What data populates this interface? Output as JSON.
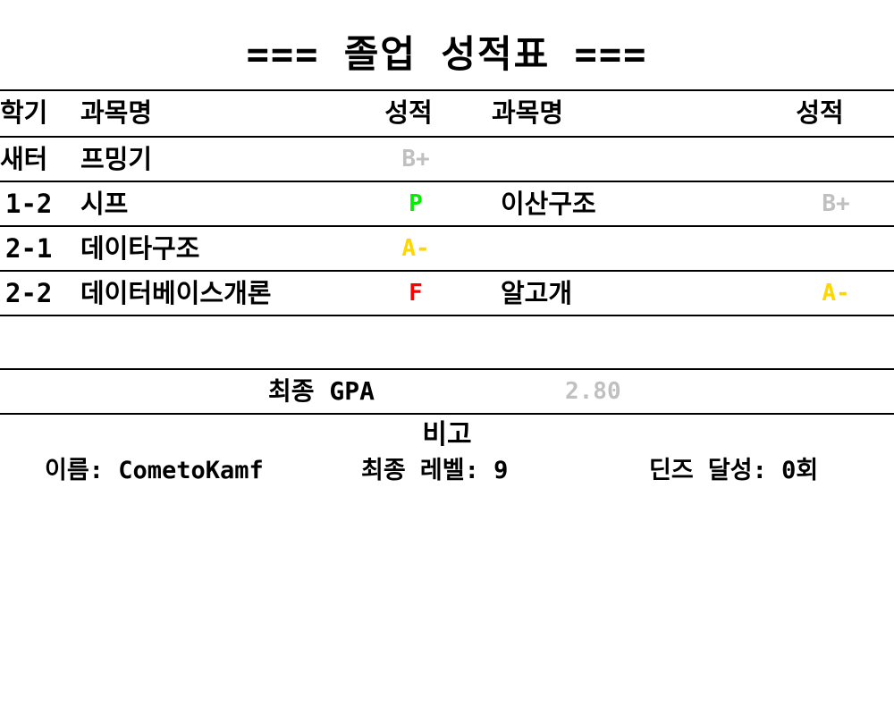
{
  "title": "=== 졸업 성적표 ===",
  "table": {
    "headers": {
      "semester": "학기",
      "course1": "과목명",
      "grade1": "성적",
      "course2": "과목명",
      "grade2": "성적"
    },
    "rows": [
      {
        "semester": "새터",
        "course1": "프밍기",
        "grade1": "B+",
        "course2": "",
        "grade2": ""
      },
      {
        "semester": "1-2",
        "course1": "시프",
        "grade1": "P",
        "course2": "이산구조",
        "grade2": "B+"
      },
      {
        "semester": "2-1",
        "course1": "데이타구조",
        "grade1": "A-",
        "course2": "",
        "grade2": ""
      },
      {
        "semester": "2-2",
        "course1": "데이터베이스개론",
        "grade1": "F",
        "course2": "알고개",
        "grade2": "A-"
      }
    ]
  },
  "gpa": {
    "label": "최종 GPA",
    "value": "2.80"
  },
  "remarks": {
    "title": "비고",
    "name": "이름: CometoKamf",
    "final_level": "최종 레벨: 9",
    "deans_list": "딘즈 달성: 0회"
  },
  "colors": {
    "text": "#000000",
    "background": "#ffffff",
    "grade_B+": "#c0c0c0",
    "grade_P": "#00ee00",
    "grade_A-": "#ffd700",
    "grade_F": "#ff0000",
    "gpa_value": "#c0c0c0"
  }
}
